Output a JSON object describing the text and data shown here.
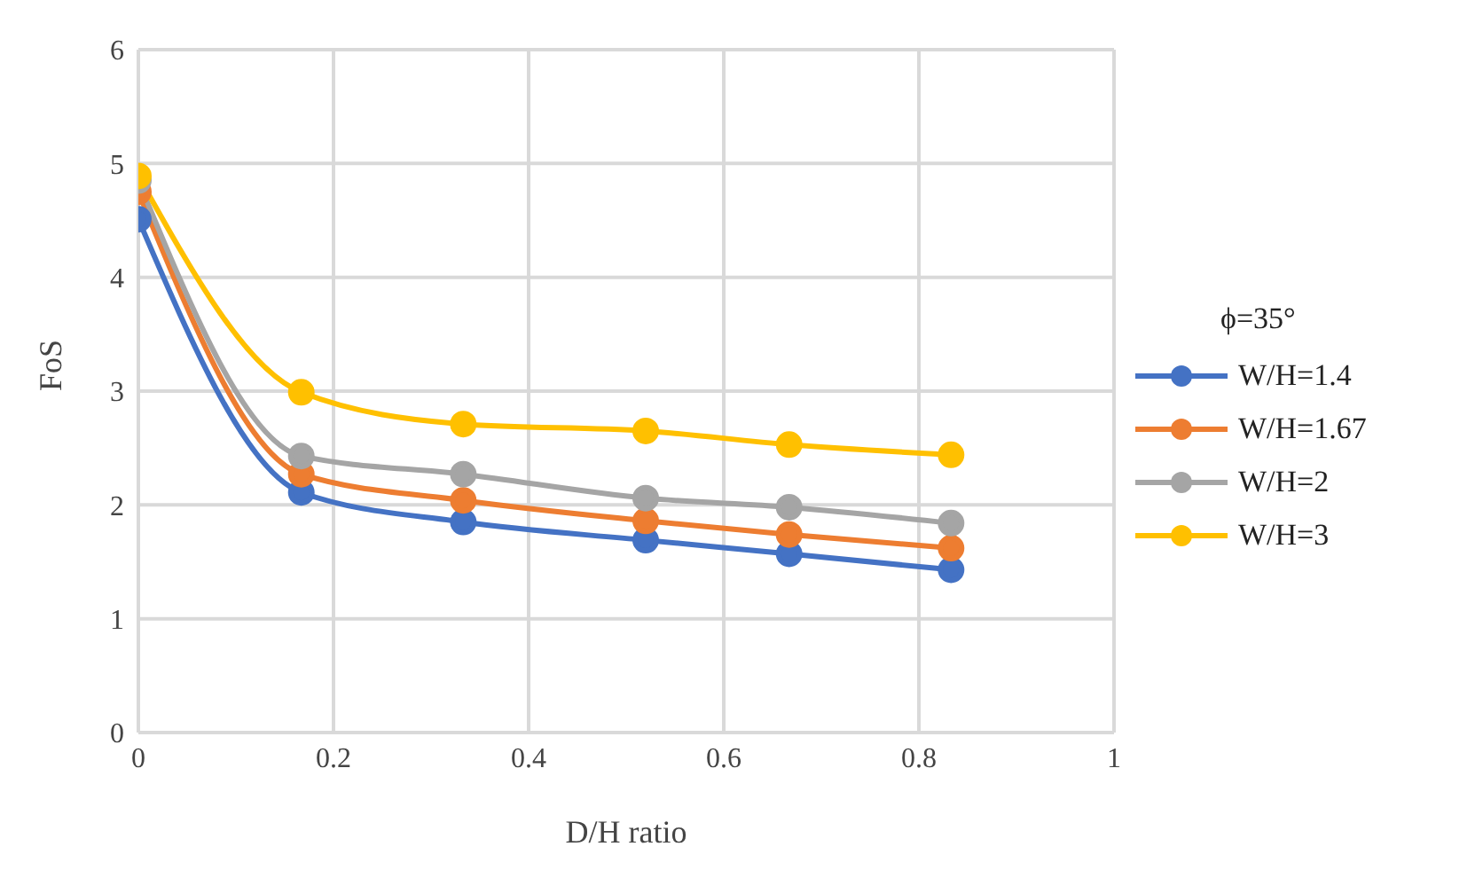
{
  "chart_data": {
    "type": "line",
    "xlabel": "D/H ratio",
    "ylabel": "FoS",
    "legend_title": "ϕ=35°",
    "x": [
      0,
      0.167,
      0.333,
      0.52,
      0.667,
      0.833
    ],
    "series": [
      {
        "name": "W/H=1.4",
        "color": "#4472c4",
        "values": [
          4.51,
          2.11,
          1.85,
          1.69,
          1.57,
          1.43
        ]
      },
      {
        "name": "W/H=1.67",
        "color": "#ed7d31",
        "values": [
          4.75,
          2.27,
          2.04,
          1.86,
          1.74,
          1.62
        ]
      },
      {
        "name": "W/H=2",
        "color": "#a5a5a5",
        "values": [
          4.85,
          2.43,
          2.27,
          2.06,
          1.98,
          1.84
        ]
      },
      {
        "name": "W/H=3",
        "color": "#ffc000",
        "values": [
          4.89,
          2.99,
          2.71,
          2.65,
          2.53,
          2.44
        ]
      }
    ],
    "xlim": [
      0,
      1
    ],
    "xticks": [
      0,
      0.2,
      0.4,
      0.6,
      0.8,
      1
    ],
    "ylim": [
      0,
      6
    ],
    "yticks": [
      0,
      1,
      2,
      3,
      4,
      5,
      6
    ],
    "grid": true,
    "legend": "right",
    "marker": "circle",
    "line_style": "solid"
  }
}
